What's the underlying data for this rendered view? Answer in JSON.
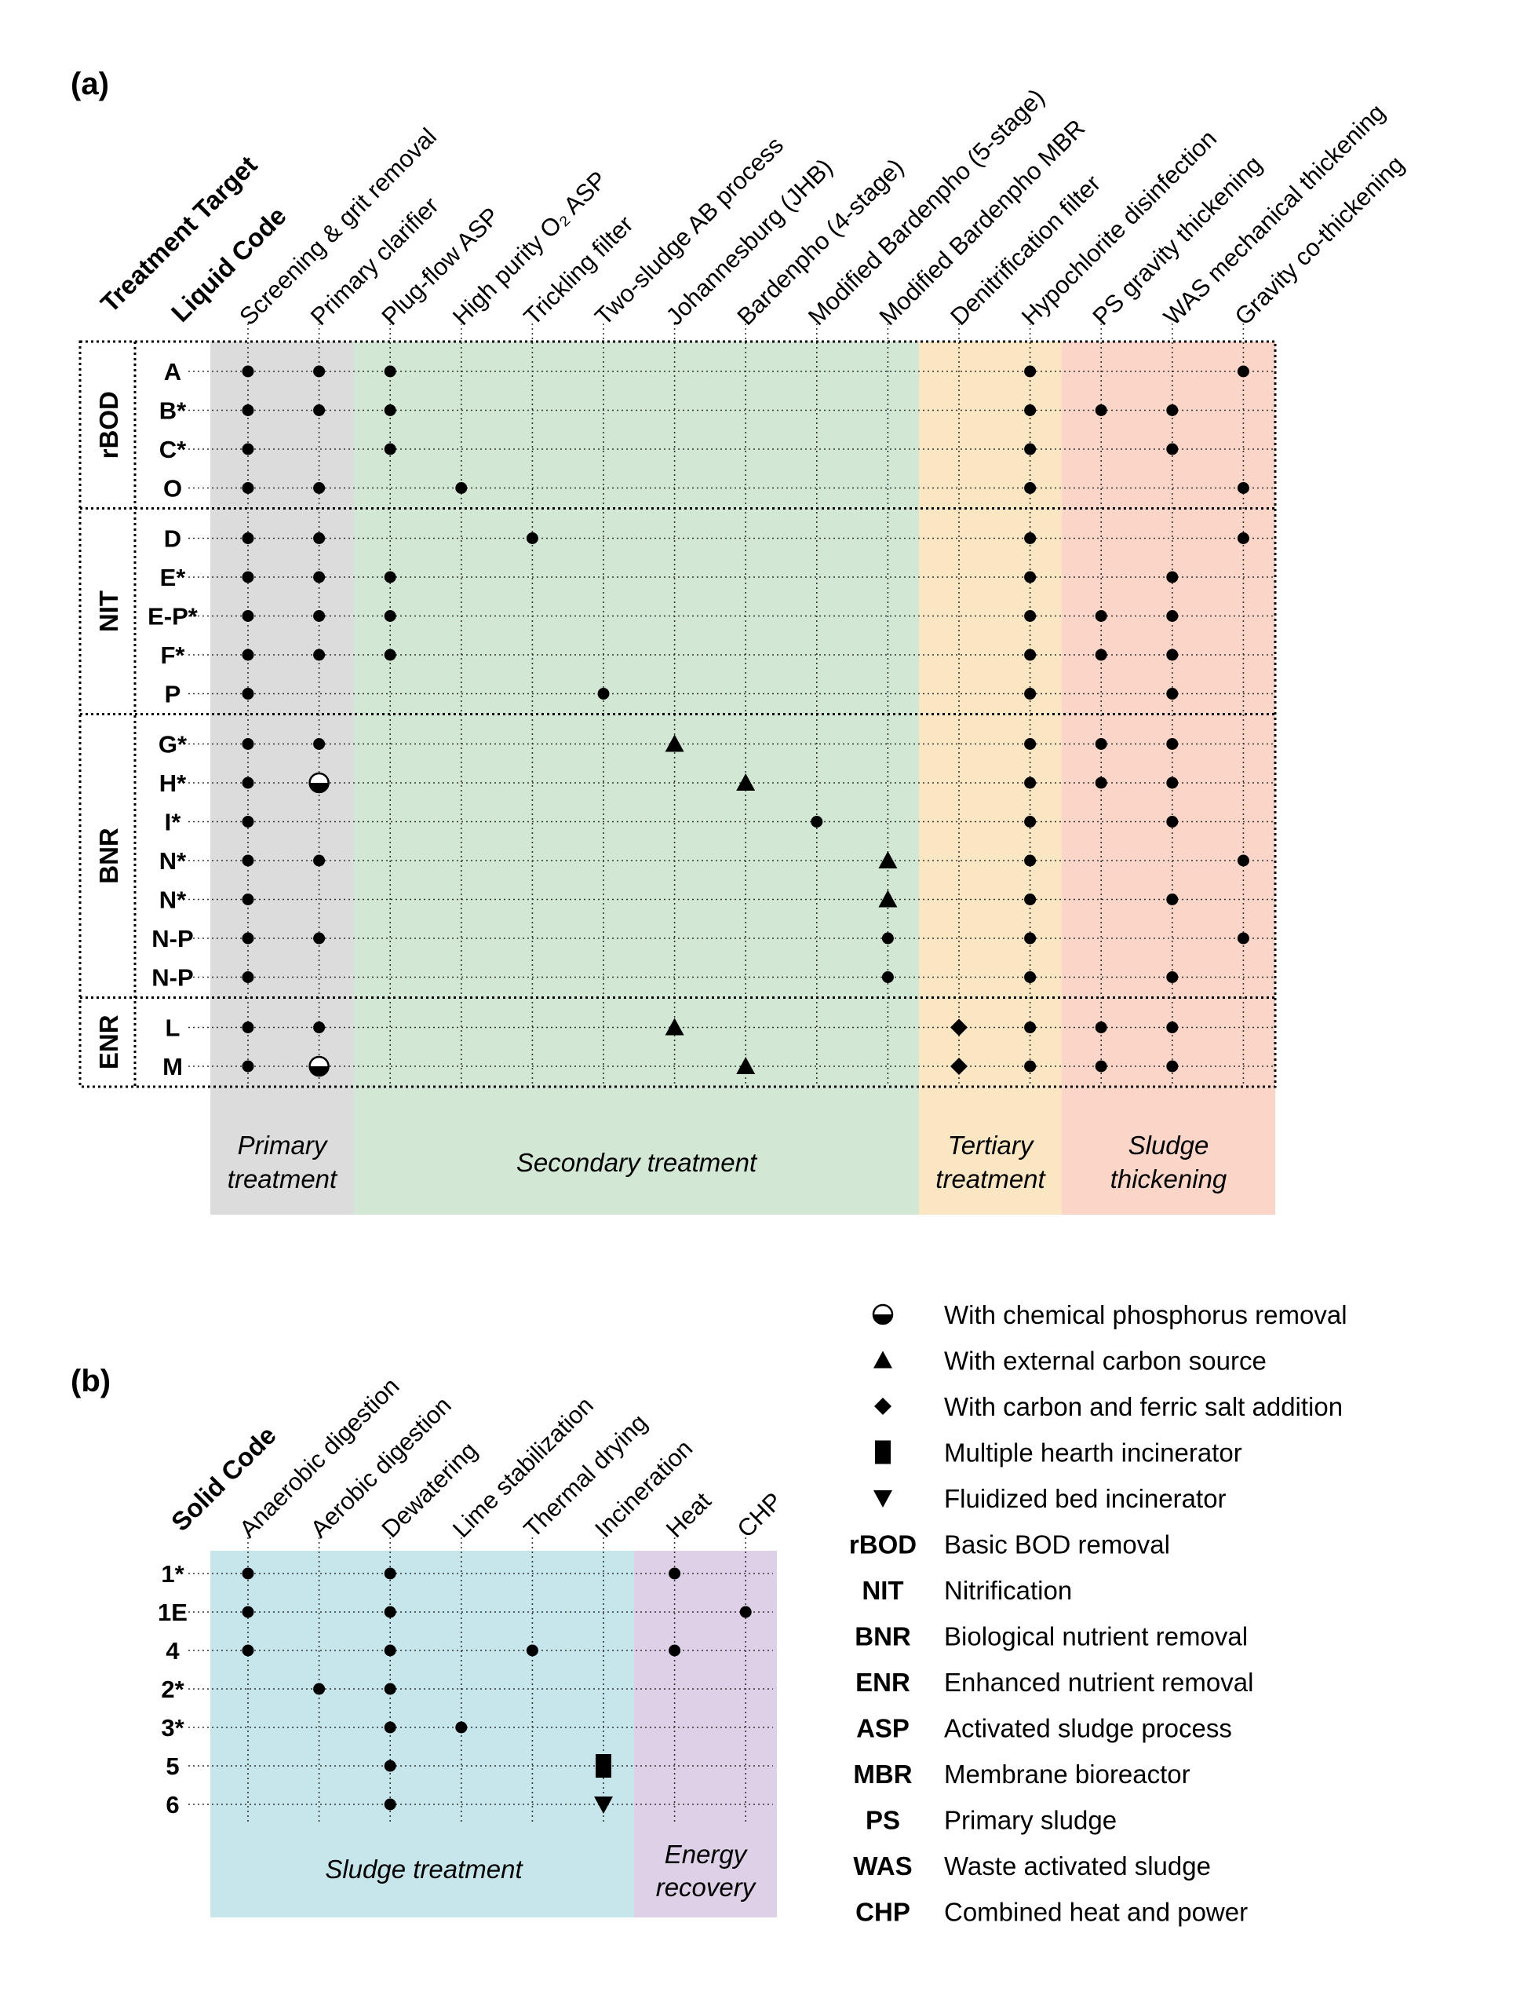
{
  "panel_a": {
    "label": "(a)",
    "header_target": "Treatment Target",
    "header_code": "Liquid Code",
    "columns": [
      "Screening & grit removal",
      "Primary clarifier",
      "Plug-flow ASP",
      "High purity O₂ ASP",
      "Trickling filter",
      "Two-sludge AB process",
      "Johannesburg (JHB)",
      "Bardenpho (4-stage)",
      "Modified Bardenpho (5-stage)",
      "Modified Bardenpho MBR",
      "Denitrification filter",
      "Hypochlorite disinfection",
      "PS gravity thickening",
      "WAS mechanical thickening",
      "Gravity co-thickening"
    ],
    "groups": [
      {
        "name": "rBOD",
        "rows": [
          {
            "code": "A",
            "marks": {
              "0": "dot",
              "1": "dot",
              "2": "dot",
              "11": "dot",
              "14": "dot"
            }
          },
          {
            "code": "B*",
            "marks": {
              "0": "dot",
              "1": "dot",
              "2": "dot",
              "11": "dot",
              "12": "dot",
              "13": "dot"
            }
          },
          {
            "code": "C*",
            "marks": {
              "0": "dot",
              "2": "dot",
              "11": "dot",
              "13": "dot"
            }
          },
          {
            "code": "O",
            "marks": {
              "0": "dot",
              "1": "dot",
              "3": "dot",
              "11": "dot",
              "14": "dot"
            }
          }
        ]
      },
      {
        "name": "NIT",
        "rows": [
          {
            "code": "D",
            "marks": {
              "0": "dot",
              "1": "dot",
              "4": "dot",
              "11": "dot",
              "14": "dot"
            }
          },
          {
            "code": "E*",
            "marks": {
              "0": "dot",
              "1": "dot",
              "2": "dot",
              "11": "dot",
              "13": "dot"
            }
          },
          {
            "code": "E-P*",
            "marks": {
              "0": "dot",
              "1": "dot",
              "2": "dot",
              "11": "dot",
              "12": "dot",
              "13": "dot"
            }
          },
          {
            "code": "F*",
            "marks": {
              "0": "dot",
              "1": "dot",
              "2": "dot",
              "11": "dot",
              "12": "dot",
              "13": "dot"
            }
          },
          {
            "code": "P",
            "marks": {
              "0": "dot",
              "5": "dot",
              "11": "dot",
              "13": "dot"
            }
          }
        ]
      },
      {
        "name": "BNR",
        "rows": [
          {
            "code": "G*",
            "marks": {
              "0": "dot",
              "1": "dot",
              "6": "triangle",
              "11": "dot",
              "12": "dot",
              "13": "dot"
            }
          },
          {
            "code": "H*",
            "marks": {
              "0": "dot",
              "1": "half",
              "7": "triangle",
              "11": "dot",
              "12": "dot",
              "13": "dot"
            }
          },
          {
            "code": "I*",
            "marks": {
              "0": "dot",
              "8": "dot",
              "11": "dot",
              "13": "dot"
            }
          },
          {
            "code": "N*",
            "marks": {
              "0": "dot",
              "1": "dot",
              "9": "triangle",
              "11": "dot",
              "14": "dot"
            }
          },
          {
            "code": "N*",
            "marks": {
              "0": "dot",
              "9": "triangle",
              "11": "dot",
              "13": "dot"
            }
          },
          {
            "code": "N-P",
            "marks": {
              "0": "dot",
              "1": "dot",
              "9": "dot",
              "11": "dot",
              "14": "dot"
            }
          },
          {
            "code": "N-P",
            "marks": {
              "0": "dot",
              "9": "dot",
              "11": "dot",
              "13": "dot"
            }
          }
        ]
      },
      {
        "name": "ENR",
        "rows": [
          {
            "code": "L",
            "marks": {
              "0": "dot",
              "1": "dot",
              "6": "triangle",
              "10": "diamond",
              "11": "dot",
              "12": "dot",
              "13": "dot"
            }
          },
          {
            "code": "M",
            "marks": {
              "0": "dot",
              "1": "half",
              "7": "triangle",
              "10": "diamond",
              "11": "dot",
              "12": "dot",
              "13": "dot"
            }
          }
        ]
      }
    ],
    "bands": [
      {
        "line1": "Primary",
        "line2": "treatment",
        "color": "#dcdcdc"
      },
      {
        "line1": "Secondary treatment",
        "line2": "",
        "color": "#d2e8d4"
      },
      {
        "line1": "Tertiary",
        "line2": "treatment",
        "color": "#fbe6c4"
      },
      {
        "line1": "Sludge",
        "line2": "thickening",
        "color": "#fbd6c8"
      }
    ]
  },
  "panel_b": {
    "label": "(b)",
    "header_code": "Solid Code",
    "columns": [
      "Anaerobic digestion",
      "Aerobic digestion",
      "Dewatering",
      "Lime stabilization",
      "Thermal drying",
      "Incineration",
      "Heat",
      "CHP"
    ],
    "rows": [
      {
        "code": "1*",
        "marks": {
          "0": "dot",
          "2": "dot",
          "6": "dot"
        }
      },
      {
        "code": "1E",
        "marks": {
          "0": "dot",
          "2": "dot",
          "7": "dot"
        }
      },
      {
        "code": "4",
        "marks": {
          "0": "dot",
          "2": "dot",
          "4": "dot",
          "6": "dot"
        }
      },
      {
        "code": "2*",
        "marks": {
          "1": "dot",
          "2": "dot"
        }
      },
      {
        "code": "3*",
        "marks": {
          "2": "dot",
          "3": "dot"
        }
      },
      {
        "code": "5",
        "marks": {
          "2": "dot",
          "5": "rect"
        }
      },
      {
        "code": "6",
        "marks": {
          "2": "dot",
          "5": "down"
        }
      }
    ],
    "bands": [
      {
        "line1": "Sludge treatment",
        "line2": "",
        "color": "#c7e6ec"
      },
      {
        "line1": "Energy",
        "line2": "recovery",
        "color": "#ddd0e7"
      }
    ]
  },
  "legend": [
    {
      "symbol": "half",
      "text": "With chemical phosphorus removal"
    },
    {
      "symbol": "triangle",
      "text": "With external carbon source"
    },
    {
      "symbol": "diamond",
      "text": "With carbon and ferric salt addition"
    },
    {
      "symbol": "rect",
      "text": "Multiple hearth incinerator"
    },
    {
      "symbol": "down",
      "text": "Fluidized bed incinerator"
    },
    {
      "abbr": "rBOD",
      "text": "Basic BOD removal"
    },
    {
      "abbr": "NIT",
      "text": "Nitrification"
    },
    {
      "abbr": "BNR",
      "text": "Biological nutrient removal"
    },
    {
      "abbr": "ENR",
      "text": "Enhanced nutrient removal"
    },
    {
      "abbr": "ASP",
      "text": "Activated sludge process"
    },
    {
      "abbr": "MBR",
      "text": "Membrane bioreactor"
    },
    {
      "abbr": "PS",
      "text": "Primary sludge"
    },
    {
      "abbr": "WAS",
      "text": "Waste activated sludge"
    },
    {
      "abbr": "CHP",
      "text": "Combined heat and power"
    }
  ]
}
